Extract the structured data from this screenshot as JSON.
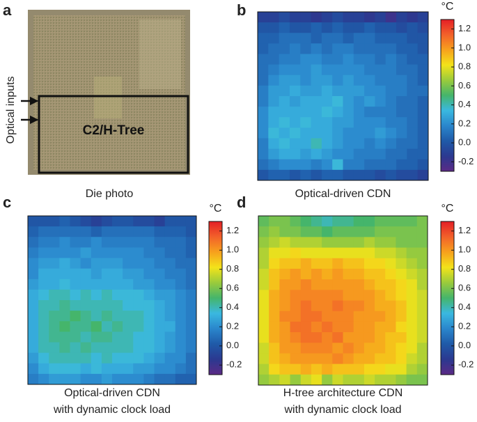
{
  "photo": {
    "panel_label": "a",
    "caption": "Die photo",
    "side_label": "Optical inputs",
    "box_label": "C2/H-Tree"
  },
  "chart_data": [
    {
      "type": "heatmap",
      "panel_label": "b",
      "caption": [
        "Optical-driven CDN"
      ],
      "colorbar_label": "°C",
      "zlim": [
        -0.3,
        1.3
      ],
      "zticks": [
        -0.2,
        {
          "value": 0,
          "label": "0.0"
        },
        0.2,
        0.4,
        0.6,
        0.8,
        {
          "value": 1,
          "label": "1.0"
        },
        1.2
      ],
      "colormap": [
        "#5b2a86",
        "#2b3990",
        "#1f5aa8",
        "#2a86cc",
        "#3ab8e0",
        "#45b56b",
        "#9acb3c",
        "#f3e31a",
        "#f7a11d",
        "#f2612a",
        "#e41f26"
      ],
      "values": [
        [
          -0.1,
          -0.1,
          -0.05,
          -0.1,
          -0.1,
          -0.15,
          -0.1,
          -0.05,
          -0.1,
          -0.1,
          -0.15,
          -0.1,
          -0.2,
          -0.1,
          -0.15,
          -0.1
        ],
        [
          0,
          0,
          0.05,
          0,
          0,
          0.05,
          0,
          0.05,
          0,
          0,
          0.05,
          0,
          0,
          -0.05,
          0,
          -0.05
        ],
        [
          0.05,
          0.05,
          0.1,
          0.1,
          0.1,
          0.05,
          0.1,
          0.1,
          0.05,
          0.1,
          0.1,
          0.05,
          0.05,
          0.05,
          0,
          0
        ],
        [
          0.05,
          0.1,
          0.1,
          0.15,
          0.1,
          0.15,
          0.1,
          0.15,
          0.15,
          0.1,
          0.1,
          0.1,
          0.1,
          0.05,
          0.05,
          0
        ],
        [
          0.1,
          0.1,
          0.15,
          0.15,
          0.2,
          0.2,
          0.15,
          0.15,
          0.2,
          0.15,
          0.15,
          0.1,
          0.15,
          0.1,
          0.05,
          0.05
        ],
        [
          0.1,
          0.15,
          0.2,
          0.2,
          0.2,
          0.25,
          0.2,
          0.2,
          0.2,
          0.2,
          0.15,
          0.15,
          0.15,
          0.1,
          0.1,
          0.05
        ],
        [
          0.1,
          0.2,
          0.25,
          0.25,
          0.2,
          0.25,
          0.25,
          0.2,
          0.25,
          0.2,
          0.2,
          0.15,
          0.15,
          0.15,
          0.1,
          0.05
        ],
        [
          0.15,
          0.25,
          0.25,
          0.3,
          0.25,
          0.25,
          0.3,
          0.25,
          0.25,
          0.25,
          0.2,
          0.2,
          0.15,
          0.15,
          0.1,
          0.1
        ],
        [
          0.15,
          0.25,
          0.3,
          0.25,
          0.3,
          0.3,
          0.3,
          0.35,
          0.25,
          0.2,
          0.25,
          0.2,
          0.15,
          0.1,
          0.1,
          0.05
        ],
        [
          0.2,
          0.3,
          0.3,
          0.3,
          0.3,
          0.3,
          0.35,
          0.3,
          0.25,
          0.2,
          0.15,
          0.15,
          0.15,
          0.1,
          0.1,
          0.05
        ],
        [
          0.2,
          0.3,
          0.35,
          0.3,
          0.35,
          0.3,
          0.3,
          0.25,
          0.25,
          0.2,
          0.2,
          0.2,
          0.15,
          0.15,
          0.1,
          0.05
        ],
        [
          0.2,
          0.35,
          0.3,
          0.35,
          0.3,
          0.3,
          0.3,
          0.25,
          0.2,
          0.2,
          0.2,
          0.25,
          0.2,
          0.15,
          0.1,
          0.05
        ],
        [
          0.15,
          0.3,
          0.35,
          0.3,
          0.3,
          0.4,
          0.3,
          0.25,
          0.2,
          0.2,
          0.15,
          0.2,
          0.15,
          0.1,
          0.1,
          0.05
        ],
        [
          0.15,
          0.25,
          0.3,
          0.3,
          0.25,
          0.3,
          0.25,
          0.2,
          0.2,
          0.15,
          0.15,
          0.15,
          0.1,
          0.1,
          0.05,
          0.05
        ],
        [
          0.1,
          0.15,
          0.2,
          0.2,
          0.2,
          0.15,
          0.2,
          0.35,
          0.15,
          0.15,
          0.1,
          0.1,
          0.1,
          0.05,
          0.05,
          0
        ],
        [
          0,
          0.05,
          0.05,
          0,
          0.05,
          0,
          0.05,
          0.05,
          0,
          0,
          0,
          -0.05,
          0,
          -0.05,
          -0.05,
          -0.1
        ]
      ]
    },
    {
      "type": "heatmap",
      "panel_label": "c",
      "caption": [
        "Optical-driven CDN",
        "with dynamic clock load"
      ],
      "colorbar_label": "°C",
      "zlim": [
        -0.3,
        1.3
      ],
      "zticks": [
        -0.2,
        {
          "value": 0,
          "label": "0.0"
        },
        0.2,
        0.4,
        0.6,
        0.8,
        {
          "value": 1,
          "label": "1.0"
        },
        1.2
      ],
      "colormap": [
        "#5b2a86",
        "#2b3990",
        "#1f5aa8",
        "#2a86cc",
        "#3ab8e0",
        "#45b56b",
        "#9acb3c",
        "#f3e31a",
        "#f7a11d",
        "#f2612a",
        "#e41f26"
      ],
      "values": [
        [
          0,
          0,
          0,
          0.05,
          0,
          -0.05,
          -0.1,
          -0.05,
          0,
          0,
          -0.05,
          -0.05,
          -0.1,
          0,
          0,
          0
        ],
        [
          0.05,
          0.1,
          0.1,
          0.1,
          0.1,
          0.1,
          0.05,
          0.1,
          0.1,
          0.1,
          0.1,
          0.1,
          0.05,
          0.05,
          0.05,
          0
        ],
        [
          0.1,
          0.15,
          0.15,
          0.2,
          0.15,
          0.15,
          0.2,
          0.15,
          0.15,
          0.15,
          0.15,
          0.15,
          0.1,
          0.1,
          0.1,
          0.05
        ],
        [
          0.15,
          0.2,
          0.2,
          0.2,
          0.2,
          0.25,
          0.2,
          0.2,
          0.2,
          0.2,
          0.2,
          0.15,
          0.15,
          0.1,
          0.1,
          0.05
        ],
        [
          0.2,
          0.25,
          0.25,
          0.3,
          0.25,
          0.2,
          0.25,
          0.25,
          0.25,
          0.2,
          0.2,
          0.2,
          0.15,
          0.15,
          0.1,
          0.1
        ],
        [
          0.2,
          0.3,
          0.3,
          0.3,
          0.3,
          0.3,
          0.25,
          0.3,
          0.3,
          0.25,
          0.25,
          0.2,
          0.2,
          0.15,
          0.15,
          0.1
        ],
        [
          0.25,
          0.3,
          0.3,
          0.35,
          0.3,
          0.3,
          0.3,
          0.3,
          0.3,
          0.3,
          0.25,
          0.25,
          0.2,
          0.2,
          0.15,
          0.1
        ],
        [
          0.3,
          0.35,
          0.4,
          0.4,
          0.35,
          0.4,
          0.35,
          0.4,
          0.35,
          0.35,
          0.35,
          0.3,
          0.25,
          0.25,
          0.2,
          0.15
        ],
        [
          0.3,
          0.4,
          0.4,
          0.45,
          0.4,
          0.4,
          0.4,
          0.4,
          0.4,
          0.35,
          0.35,
          0.35,
          0.3,
          0.25,
          0.2,
          0.15
        ],
        [
          0.3,
          0.4,
          0.45,
          0.45,
          0.5,
          0.45,
          0.4,
          0.45,
          0.4,
          0.4,
          0.4,
          0.35,
          0.3,
          0.25,
          0.2,
          0.15
        ],
        [
          0.3,
          0.4,
          0.45,
          0.5,
          0.45,
          0.45,
          0.5,
          0.4,
          0.45,
          0.4,
          0.4,
          0.35,
          0.3,
          0.3,
          0.2,
          0.15
        ],
        [
          0.3,
          0.4,
          0.45,
          0.45,
          0.45,
          0.4,
          0.45,
          0.45,
          0.4,
          0.4,
          0.35,
          0.35,
          0.3,
          0.25,
          0.2,
          0.15
        ],
        [
          0.3,
          0.4,
          0.4,
          0.45,
          0.4,
          0.45,
          0.4,
          0.4,
          0.4,
          0.4,
          0.35,
          0.35,
          0.3,
          0.25,
          0.2,
          0.15
        ],
        [
          0.25,
          0.35,
          0.4,
          0.4,
          0.4,
          0.4,
          0.35,
          0.4,
          0.35,
          0.35,
          0.35,
          0.3,
          0.25,
          0.2,
          0.2,
          0.1
        ],
        [
          0.2,
          0.3,
          0.35,
          0.35,
          0.35,
          0.3,
          0.35,
          0.3,
          0.3,
          0.3,
          0.25,
          0.25,
          0.2,
          0.2,
          0.15,
          0.1
        ],
        [
          0.15,
          0.2,
          0.25,
          0.25,
          0.25,
          0.2,
          0.2,
          0.25,
          0.2,
          0.2,
          0.2,
          0.15,
          0.1,
          0.1,
          0.05,
          0.05
        ]
      ]
    },
    {
      "type": "heatmap",
      "panel_label": "d",
      "caption": [
        "H-tree architecture CDN",
        "with dynamic clock load"
      ],
      "colorbar_label": "°C",
      "zlim": [
        -0.3,
        1.3
      ],
      "zticks": [
        -0.2,
        {
          "value": 0,
          "label": "0.0"
        },
        0.2,
        0.4,
        0.6,
        0.8,
        {
          "value": 1,
          "label": "1.0"
        },
        1.2
      ],
      "colormap": [
        "#5b2a86",
        "#2b3990",
        "#1f5aa8",
        "#2a86cc",
        "#3ab8e0",
        "#45b56b",
        "#9acb3c",
        "#f3e31a",
        "#f7a11d",
        "#f2612a",
        "#e41f26"
      ],
      "values": [
        [
          0.55,
          0.6,
          0.6,
          0.55,
          0.5,
          0.45,
          0.4,
          0.45,
          0.45,
          0.5,
          0.5,
          0.55,
          0.55,
          0.55,
          0.55,
          0.6
        ],
        [
          0.6,
          0.65,
          0.6,
          0.6,
          0.55,
          0.55,
          0.5,
          0.55,
          0.55,
          0.55,
          0.55,
          0.6,
          0.6,
          0.6,
          0.6,
          0.6
        ],
        [
          0.65,
          0.7,
          0.75,
          0.7,
          0.7,
          0.7,
          0.65,
          0.65,
          0.65,
          0.65,
          0.7,
          0.65,
          0.65,
          0.6,
          0.6,
          0.6
        ],
        [
          0.7,
          0.8,
          0.8,
          0.85,
          0.8,
          0.8,
          0.8,
          0.8,
          0.8,
          0.8,
          0.8,
          0.75,
          0.75,
          0.7,
          0.65,
          0.65
        ],
        [
          0.7,
          0.85,
          0.9,
          0.9,
          0.95,
          0.9,
          0.9,
          0.95,
          0.9,
          0.9,
          0.85,
          0.85,
          0.8,
          0.75,
          0.7,
          0.65
        ],
        [
          0.75,
          0.9,
          0.95,
          1.0,
          0.95,
          1.0,
          0.95,
          1.0,
          0.95,
          0.95,
          0.9,
          0.9,
          0.85,
          0.8,
          0.75,
          0.7
        ],
        [
          0.75,
          0.9,
          1.0,
          1.0,
          1.05,
          1.0,
          1.0,
          1.0,
          1.0,
          1.0,
          0.95,
          0.9,
          0.9,
          0.85,
          0.8,
          0.7
        ],
        [
          0.8,
          0.95,
          1.0,
          1.05,
          1.05,
          1.05,
          1.05,
          1.05,
          1.0,
          1.0,
          1.0,
          0.95,
          0.9,
          0.85,
          0.8,
          0.75
        ],
        [
          0.8,
          0.95,
          1.0,
          1.05,
          1.1,
          1.05,
          1.05,
          1.1,
          1.05,
          1.05,
          1.0,
          0.95,
          0.95,
          0.9,
          0.8,
          0.75
        ],
        [
          0.8,
          0.95,
          1.05,
          1.05,
          1.1,
          1.1,
          1.05,
          1.05,
          1.05,
          1.0,
          1.0,
          1.0,
          0.95,
          0.9,
          0.8,
          0.75
        ],
        [
          0.8,
          0.95,
          1.0,
          1.1,
          1.1,
          1.05,
          1.1,
          1.05,
          1.05,
          1.0,
          1.0,
          0.95,
          0.95,
          0.85,
          0.8,
          0.75
        ],
        [
          0.8,
          0.95,
          1.0,
          1.05,
          1.1,
          1.1,
          1.05,
          1.1,
          1.0,
          1.0,
          1.0,
          0.95,
          0.9,
          0.9,
          0.8,
          0.75
        ],
        [
          0.75,
          0.9,
          1.0,
          1.0,
          1.05,
          1.05,
          1.05,
          1.0,
          1.05,
          1.0,
          0.95,
          0.95,
          0.9,
          0.85,
          0.8,
          0.7
        ],
        [
          0.75,
          0.9,
          0.95,
          1.0,
          1.0,
          1.0,
          1.0,
          1.05,
          1.0,
          0.95,
          0.95,
          0.9,
          0.9,
          0.85,
          0.75,
          0.7
        ],
        [
          0.7,
          0.85,
          0.9,
          0.9,
          0.95,
          0.9,
          0.95,
          0.9,
          0.9,
          0.9,
          0.85,
          0.85,
          0.8,
          0.8,
          0.7,
          0.65
        ],
        [
          0.65,
          0.7,
          0.75,
          0.65,
          0.75,
          0.8,
          0.65,
          0.75,
          0.7,
          0.7,
          0.75,
          0.7,
          0.7,
          0.65,
          0.6,
          0.6
        ]
      ]
    }
  ]
}
